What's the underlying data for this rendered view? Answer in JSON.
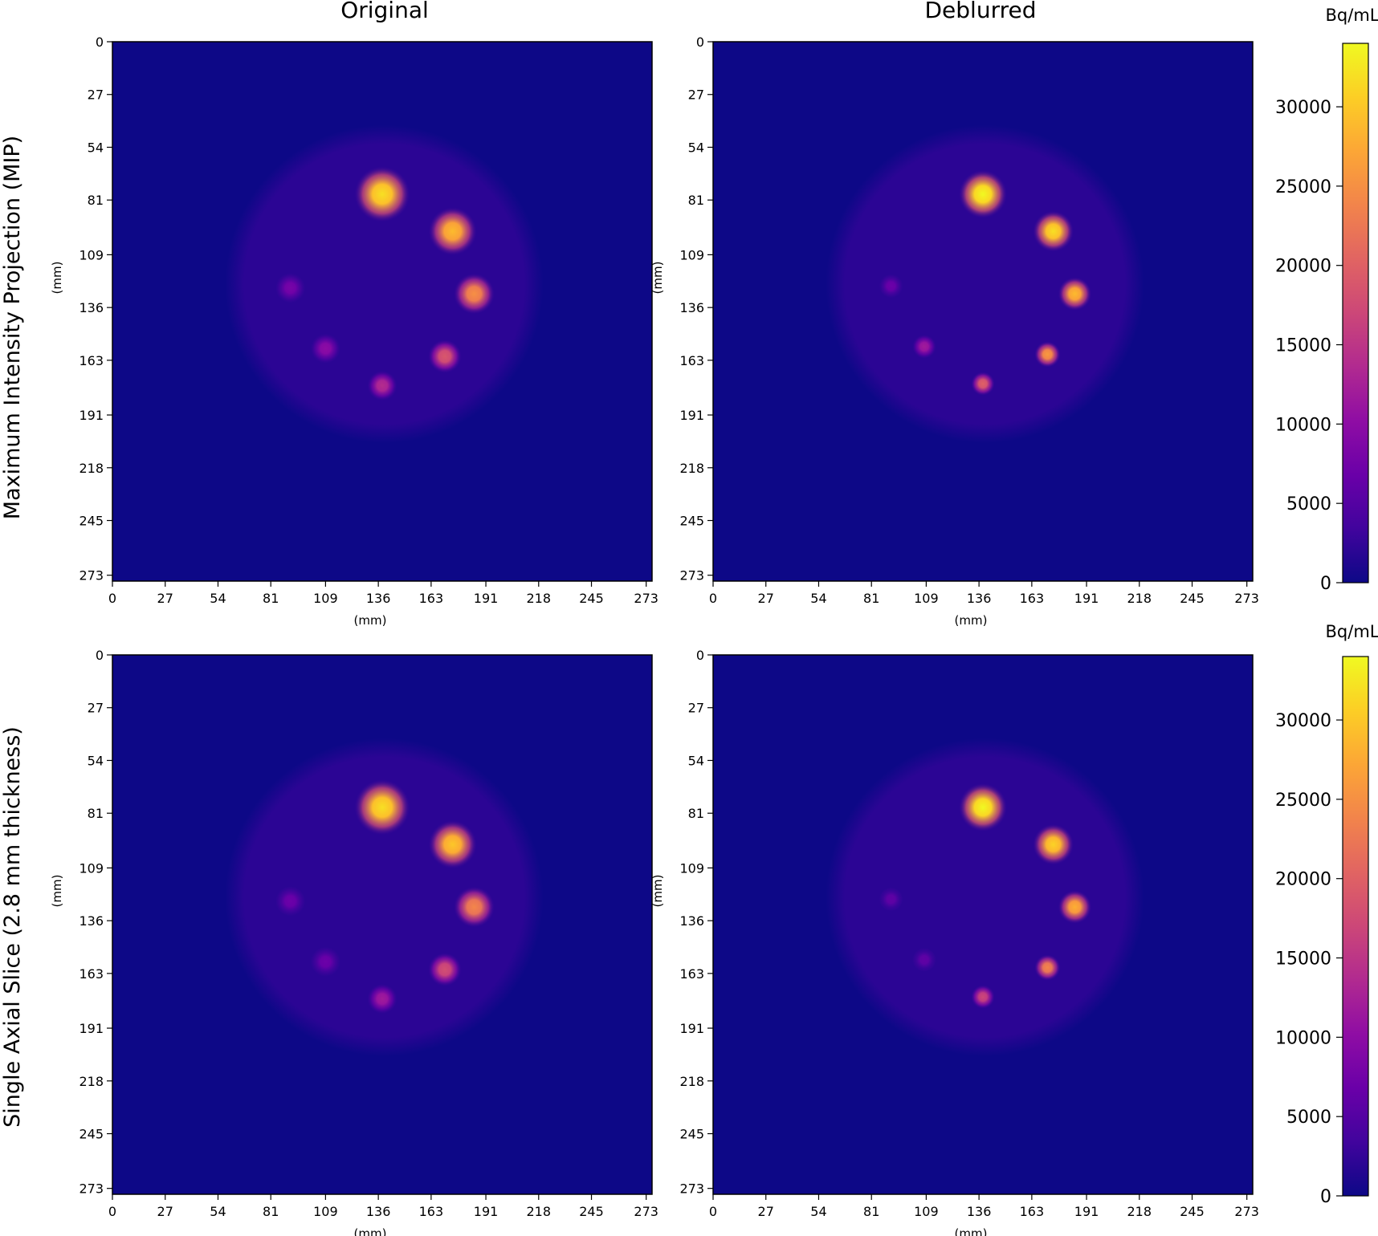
{
  "figure": {
    "column_titles": [
      "Original",
      "Deblurred"
    ],
    "row_titles": [
      "Maximum Intensity Projection (MIP)",
      "Single Axial Slice (2.8 mm thickness)"
    ],
    "axis_unit_label": "(mm)",
    "axis_ticks": [
      "0",
      "27",
      "54",
      "81",
      "109",
      "136",
      "163",
      "191",
      "218",
      "245",
      "273"
    ],
    "axis_range_mm": [
      0,
      276
    ],
    "colorbar": {
      "label": "Bq/mL",
      "colormap": "plasma",
      "range": [
        0,
        34000
      ],
      "ticks": [
        "0",
        "5000",
        "10000",
        "15000",
        "20000",
        "25000",
        "30000"
      ]
    },
    "colors": {
      "background": "#0d0887",
      "phantom": "#2b0594",
      "spine": "#000000"
    }
  },
  "panels": [
    {
      "row": 0,
      "col": 0,
      "phantom": {
        "cx": 139,
        "cy": 124,
        "r": 79
      },
      "spheres": [
        {
          "x": 138,
          "y": 78,
          "r": 7.5,
          "value": 32000
        },
        {
          "x": 174,
          "y": 97,
          "r": 6.5,
          "value": 29000
        },
        {
          "x": 185,
          "y": 129,
          "r": 5.5,
          "value": 25000
        },
        {
          "x": 170,
          "y": 161,
          "r": 4.5,
          "value": 19000
        },
        {
          "x": 138,
          "y": 176,
          "r": 4.0,
          "value": 14000
        },
        {
          "x": 109,
          "y": 157,
          "r": 4.0,
          "value": 10000
        },
        {
          "x": 91,
          "y": 126,
          "r": 4.0,
          "value": 8000
        }
      ]
    },
    {
      "row": 0,
      "col": 1,
      "phantom": {
        "cx": 139,
        "cy": 124,
        "r": 79
      },
      "spheres": [
        {
          "x": 138,
          "y": 78,
          "r": 6.5,
          "value": 34000
        },
        {
          "x": 174,
          "y": 97,
          "r": 5.5,
          "value": 32000
        },
        {
          "x": 185,
          "y": 129,
          "r": 4.5,
          "value": 29000
        },
        {
          "x": 171,
          "y": 160,
          "r": 3.5,
          "value": 26000
        },
        {
          "x": 138,
          "y": 175,
          "r": 3.2,
          "value": 20000
        },
        {
          "x": 108,
          "y": 156,
          "r": 3.2,
          "value": 12000
        },
        {
          "x": 91,
          "y": 125,
          "r": 3.2,
          "value": 7000
        }
      ]
    },
    {
      "row": 1,
      "col": 0,
      "phantom": {
        "cx": 139,
        "cy": 124,
        "r": 79
      },
      "spheres": [
        {
          "x": 138,
          "y": 78,
          "r": 7.5,
          "value": 32000
        },
        {
          "x": 174,
          "y": 97,
          "r": 6.5,
          "value": 30000
        },
        {
          "x": 185,
          "y": 129,
          "r": 5.5,
          "value": 24000
        },
        {
          "x": 170,
          "y": 161,
          "r": 4.5,
          "value": 18000
        },
        {
          "x": 138,
          "y": 176,
          "r": 4.0,
          "value": 12000
        },
        {
          "x": 109,
          "y": 157,
          "r": 4.0,
          "value": 7000
        },
        {
          "x": 91,
          "y": 126,
          "r": 4.0,
          "value": 7000
        }
      ]
    },
    {
      "row": 1,
      "col": 1,
      "phantom": {
        "cx": 139,
        "cy": 124,
        "r": 79
      },
      "spheres": [
        {
          "x": 138,
          "y": 78,
          "r": 6.5,
          "value": 34000
        },
        {
          "x": 174,
          "y": 97,
          "r": 5.5,
          "value": 31000
        },
        {
          "x": 185,
          "y": 129,
          "r": 4.5,
          "value": 28000
        },
        {
          "x": 171,
          "y": 160,
          "r": 3.5,
          "value": 24000
        },
        {
          "x": 138,
          "y": 175,
          "r": 3.2,
          "value": 17000
        },
        {
          "x": 108,
          "y": 156,
          "r": 3.2,
          "value": 6000
        },
        {
          "x": 91,
          "y": 125,
          "r": 3.2,
          "value": 6000
        }
      ]
    }
  ]
}
